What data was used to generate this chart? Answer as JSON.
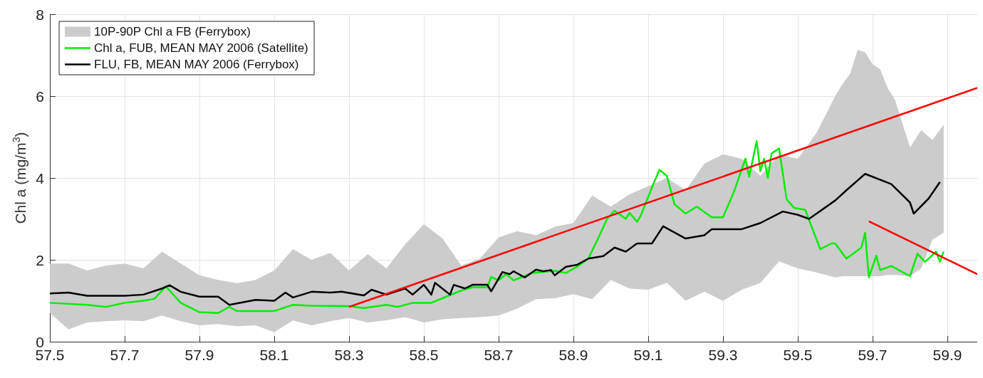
{
  "chart_data": {
    "type": "line",
    "ylabel": "Chl a (mg/m$^{3}$)",
    "xlim": [
      57.5,
      59.98
    ],
    "xticks": [
      57.5,
      57.7,
      57.9,
      58.1,
      58.3,
      58.5,
      58.7,
      58.9,
      59.1,
      59.3,
      59.5,
      59.7,
      59.9
    ],
    "ylim": [
      0,
      8
    ],
    "yticks": [
      0,
      2,
      4,
      6,
      8
    ],
    "grid": true,
    "legend": "top left",
    "marker": "none",
    "series": [
      {
        "type": "area",
        "name": "10P-90P Chl a FB (Ferrybox)",
        "color": "#cccccc",
        "x": [
          57.5,
          57.55,
          57.6,
          57.65,
          57.7,
          57.75,
          57.8,
          57.85,
          57.9,
          57.95,
          58.0,
          58.05,
          58.1,
          58.15,
          58.2,
          58.25,
          58.3,
          58.35,
          58.4,
          58.45,
          58.5,
          58.55,
          58.6,
          58.65,
          58.7,
          58.75,
          58.8,
          58.85,
          58.9,
          58.95,
          59.0,
          59.05,
          59.1,
          59.15,
          59.2,
          59.25,
          59.3,
          59.35,
          59.4,
          59.45,
          59.5,
          59.55,
          59.6,
          59.62,
          59.64,
          59.66,
          59.68,
          59.7,
          59.72,
          59.74,
          59.76,
          59.8,
          59.83,
          59.86,
          59.89
        ],
        "upper": [
          1.91,
          1.91,
          1.74,
          1.86,
          1.91,
          1.79,
          2.2,
          1.91,
          1.62,
          1.51,
          1.43,
          1.51,
          1.74,
          2.26,
          2.0,
          2.17,
          1.74,
          2.14,
          1.79,
          2.38,
          2.87,
          2.52,
          1.86,
          2.03,
          2.55,
          2.7,
          2.6,
          2.81,
          2.9,
          3.57,
          3.3,
          3.6,
          3.8,
          4.0,
          3.7,
          4.35,
          4.58,
          4.47,
          4.05,
          4.58,
          4.47,
          5.1,
          6.0,
          6.3,
          6.55,
          7.13,
          7.07,
          6.78,
          6.66,
          6.2,
          5.91,
          4.75,
          5.17,
          4.93,
          5.3
        ],
        "values": [
          null,
          null,
          null,
          null,
          null,
          null,
          null,
          null,
          null,
          null,
          null,
          null,
          null,
          null,
          null,
          null,
          null,
          null,
          null,
          null,
          null,
          null,
          null,
          null,
          null,
          null,
          null,
          null,
          null,
          null,
          null,
          null,
          null,
          null,
          null,
          null,
          null,
          null,
          null,
          null,
          null,
          null,
          null,
          null,
          null,
          null,
          null,
          null,
          null,
          null,
          null,
          null,
          null,
          null,
          null
        ],
        "lower": [
          0.7,
          0.3,
          0.47,
          0.5,
          0.52,
          0.5,
          0.64,
          0.5,
          0.4,
          0.43,
          0.38,
          0.4,
          0.23,
          0.52,
          0.4,
          0.5,
          0.58,
          0.47,
          0.52,
          0.6,
          0.47,
          0.55,
          0.58,
          0.6,
          0.64,
          0.81,
          1.04,
          1.06,
          1.16,
          1.04,
          1.51,
          1.3,
          1.27,
          1.44,
          1.0,
          1.22,
          1.0,
          1.27,
          1.44,
          1.96,
          1.79,
          1.69,
          1.57,
          1.6,
          1.6,
          1.6,
          1.6,
          1.6,
          1.6,
          1.63,
          1.63,
          1.6,
          1.79,
          2.49,
          2.66
        ]
      },
      {
        "name": "Chl a, FUB, MEAN MAY 2006 (Satellite)",
        "color": "#00ee00",
        "x": [
          57.5,
          57.6,
          57.65,
          57.7,
          57.75,
          57.78,
          57.81,
          57.85,
          57.9,
          57.95,
          57.98,
          58.0,
          58.05,
          58.1,
          58.15,
          58.2,
          58.3,
          58.34,
          58.4,
          58.43,
          58.47,
          58.52,
          58.56,
          58.6,
          58.63,
          58.67,
          58.68,
          58.7,
          58.72,
          58.74,
          58.79,
          58.85,
          58.88,
          58.91,
          58.94,
          58.97,
          58.99,
          59.01,
          59.04,
          59.05,
          59.07,
          59.08,
          59.11,
          59.13,
          59.15,
          59.17,
          59.2,
          59.23,
          59.27,
          59.3,
          59.33,
          59.36,
          59.37,
          59.39,
          59.4,
          59.41,
          59.42,
          59.43,
          59.45,
          59.47,
          59.49,
          59.52,
          59.56,
          59.59,
          59.6,
          59.63,
          59.67,
          59.68,
          59.69,
          59.71,
          59.72,
          59.75,
          59.78,
          59.8,
          59.82,
          59.84,
          59.87,
          59.88,
          59.89
        ],
        "values": [
          0.95,
          0.9,
          0.85,
          0.95,
          1.0,
          1.05,
          1.35,
          0.95,
          0.72,
          0.7,
          0.85,
          0.75,
          0.75,
          0.75,
          0.9,
          0.88,
          0.87,
          0.82,
          0.9,
          0.85,
          0.95,
          0.95,
          1.1,
          1.25,
          1.33,
          1.33,
          1.58,
          1.5,
          1.65,
          1.5,
          1.68,
          1.73,
          1.68,
          1.83,
          2.03,
          2.6,
          3.0,
          3.2,
          3.0,
          3.15,
          2.93,
          3.08,
          3.77,
          4.2,
          4.05,
          3.36,
          3.13,
          3.3,
          3.04,
          3.04,
          3.68,
          4.47,
          4.03,
          4.9,
          4.17,
          4.47,
          4.0,
          4.6,
          4.72,
          3.48,
          3.27,
          3.22,
          2.26,
          2.4,
          2.4,
          2.03,
          2.3,
          2.66,
          1.57,
          2.1,
          1.75,
          1.85,
          1.7,
          1.6,
          2.15,
          1.95,
          2.2,
          1.95,
          2.2
        ]
      },
      {
        "name": "FLU, FB, MEAN MAY 2006 (Ferrybox)",
        "color": "#000000",
        "x": [
          57.5,
          57.55,
          57.6,
          57.65,
          57.7,
          57.75,
          57.8,
          57.82,
          57.85,
          57.9,
          57.95,
          57.98,
          58.05,
          58.1,
          58.13,
          58.15,
          58.2,
          58.25,
          58.28,
          58.34,
          58.36,
          58.4,
          58.45,
          58.47,
          58.5,
          58.52,
          58.53,
          58.57,
          58.58,
          58.61,
          58.63,
          58.67,
          58.68,
          58.71,
          58.73,
          58.74,
          58.77,
          58.8,
          58.82,
          58.84,
          58.85,
          58.88,
          58.91,
          58.94,
          58.98,
          59.01,
          59.04,
          59.07,
          59.11,
          59.14,
          59.2,
          59.25,
          59.27,
          59.35,
          59.4,
          59.46,
          59.5,
          59.53,
          59.6,
          59.63,
          59.68,
          59.75,
          59.8,
          59.81,
          59.85,
          59.88
        ],
        "values": [
          1.18,
          1.2,
          1.12,
          1.12,
          1.12,
          1.15,
          1.3,
          1.38,
          1.22,
          1.1,
          1.1,
          0.9,
          1.02,
          1.0,
          1.2,
          1.08,
          1.22,
          1.2,
          1.22,
          1.13,
          1.27,
          1.15,
          1.3,
          1.15,
          1.39,
          1.15,
          1.44,
          1.15,
          1.39,
          1.3,
          1.39,
          1.39,
          1.23,
          1.7,
          1.65,
          1.72,
          1.57,
          1.76,
          1.72,
          1.75,
          1.62,
          1.83,
          1.88,
          2.03,
          2.09,
          2.3,
          2.2,
          2.4,
          2.4,
          2.82,
          2.52,
          2.6,
          2.75,
          2.75,
          2.9,
          3.18,
          3.1,
          3.0,
          3.45,
          3.7,
          4.1,
          3.85,
          3.4,
          3.13,
          3.5,
          3.9
        ]
      },
      {
        "color": "#ff0000",
        "x": [
          58.3,
          59.98
        ],
        "values": [
          0.85,
          6.2
        ]
      },
      {
        "color": "#ff0000",
        "x": [
          59.69,
          59.98
        ],
        "values": [
          2.94,
          1.65
        ]
      }
    ]
  }
}
